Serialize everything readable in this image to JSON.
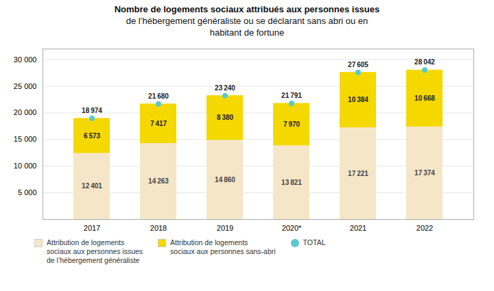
{
  "chart_data": {
    "type": "bar",
    "title": "Nombre de logements sociaux attribués aux personnes issues\nde l’hébergement généraliste ou se déclarant sans abri ou en\nhabitant de fortune",
    "categories": [
      "2017",
      "2018",
      "2019",
      "2020*",
      "2021",
      "2022"
    ],
    "series": [
      {
        "name": "Attribution de logements\nsociaux aux personnes issues\nde l’hébergement généraliste",
        "color": "#f5e6c8",
        "type": "bar",
        "values": [
          12401,
          14263,
          14860,
          13821,
          17221,
          17374
        ],
        "value_labels": [
          "12 401",
          "14 263",
          "14 860",
          "13 821",
          "17 221",
          "17 374"
        ]
      },
      {
        "name": "Attribution de logements\nsociaux aux personnes sans-abri",
        "color": "#f5d800",
        "type": "bar",
        "values": [
          6573,
          7417,
          8380,
          7970,
          10384,
          10668
        ],
        "value_labels": [
          "6 573",
          "7 417",
          "8 380",
          "7 970",
          "10 384",
          "10 668"
        ]
      },
      {
        "name": "TOTAL",
        "color": "#5bc8d0",
        "type": "scatter",
        "marker": "circle",
        "values": [
          18974,
          21680,
          23240,
          21791,
          27605,
          28042
        ],
        "value_labels": [
          "18 974",
          "21 680",
          "23 240",
          "21 791",
          "27 605",
          "28 042"
        ]
      }
    ],
    "ylim": [
      0,
      32000
    ],
    "yticks": [
      {
        "value": 5000,
        "label": "5 000"
      },
      {
        "value": 10000,
        "label": "10 000"
      },
      {
        "value": 15000,
        "label": "15 000"
      },
      {
        "value": 20000,
        "label": "20 000"
      },
      {
        "value": 25000,
        "label": "25 000"
      },
      {
        "value": 30000,
        "label": "30 000"
      }
    ],
    "stacked": true,
    "data_labels": true,
    "grid": true,
    "legend": "lower left"
  }
}
